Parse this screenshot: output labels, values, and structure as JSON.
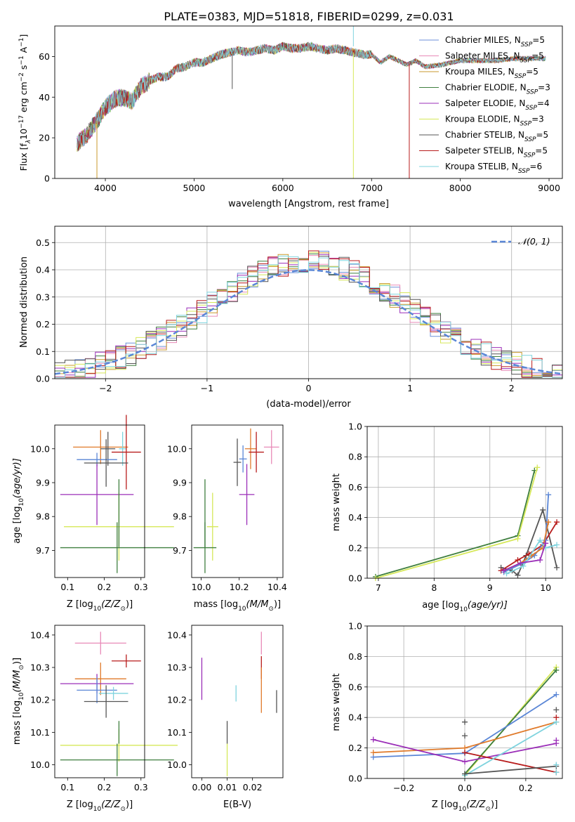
{
  "title": "PLATE=0383, MJD=51818, FIBERID=0299, z=0.031",
  "colors": {
    "Chabrier MILES": "#6b8fd8",
    "Salpeter MILES": "#e88ab8",
    "Kroupa MILES": "#c99a2c",
    "Chabrier ELODIE": "#3f7f3f",
    "Salpeter ELODIE": "#9b2fb8",
    "Kroupa ELODIE": "#d6e85a",
    "Chabrier STELIB": "#555555",
    "Salpeter STELIB": "#b81c1c",
    "Kroupa STELIB": "#7fd3de",
    "orange_extra": "#e07a2a",
    "blue_extra": "#5a86d6",
    "normal": "#5a86d6"
  },
  "chart_data": [
    {
      "type": "line",
      "id": "spectrum",
      "xlabel": "wavelength [Angstrom, rest frame]",
      "ylabel": "Flux [f",
      "ylabel_sub": "λ",
      "ylabel_mid": "10",
      "ylabel_exp": "−17",
      "ylabel_end": " erg cm",
      "ylabel_exp2": "−2",
      "ylabel_end2": " s",
      "ylabel_exp3": "−1",
      "ylabel_end3": " A",
      "ylabel_exp4": "−1",
      "ylabel_close": "]",
      "xlim": [
        3430,
        9150
      ],
      "ylim": [
        0,
        75
      ],
      "xticks": [
        "4000",
        "5000",
        "6000",
        "7000",
        "8000",
        "9000"
      ],
      "yticks": [
        "0",
        "20",
        "40",
        "60"
      ],
      "xtick_values": [
        4000,
        5000,
        6000,
        7000,
        8000,
        9000
      ],
      "ytick_values": [
        0,
        20,
        40,
        60
      ],
      "legend": [
        {
          "label": "Chabrier MILES, N",
          "sub": "SSP",
          "tail": "=5",
          "color": "#6b8fd8"
        },
        {
          "label": "Salpeter MILES, N",
          "sub": "SSP",
          "tail": "=5",
          "color": "#e88ab8"
        },
        {
          "label": "Kroupa MILES, N",
          "sub": "SSP",
          "tail": "=5",
          "color": "#c99a2c"
        },
        {
          "label": "Chabrier ELODIE, N",
          "sub": "SSP",
          "tail": "=3",
          "color": "#3f7f3f"
        },
        {
          "label": "Salpeter ELODIE, N",
          "sub": "SSP",
          "tail": "=4",
          "color": "#9b2fb8"
        },
        {
          "label": "Kroupa ELODIE, N",
          "sub": "SSP",
          "tail": "=3",
          "color": "#d6e85a"
        },
        {
          "label": "Chabrier STELIB, N",
          "sub": "SSP",
          "tail": "=5",
          "color": "#555555"
        },
        {
          "label": "Salpeter STELIB, N",
          "sub": "SSP",
          "tail": "=5",
          "color": "#b81c1c"
        },
        {
          "label": "Kroupa STELIB, N",
          "sub": "SSP",
          "tail": "=6",
          "color": "#7fd3de"
        }
      ],
      "envelope": {
        "x": [
          3680,
          3800,
          3900,
          4000,
          4100,
          4200,
          4300,
          4400,
          4500,
          4600,
          4700,
          4800,
          4900,
          5000,
          5100,
          5200,
          5300,
          5400,
          5500,
          5600,
          5700,
          5800,
          5900,
          6000,
          6100,
          6200,
          6300,
          6400,
          6500,
          6600,
          6700,
          6800,
          6900,
          7000,
          7100,
          7200,
          7300,
          7400,
          7500,
          7600,
          7800,
          8000,
          8200,
          8400,
          8600,
          8800,
          8960
        ],
        "y": [
          17,
          22,
          28,
          35,
          39,
          40,
          38,
          45,
          48,
          50,
          50,
          54,
          55,
          57,
          57,
          59,
          61,
          62,
          63,
          62,
          63,
          64,
          63,
          65,
          64,
          64,
          65,
          64,
          63,
          64,
          63,
          62,
          61,
          61,
          57,
          60,
          58,
          56,
          58,
          55,
          56,
          58,
          58,
          58,
          59,
          59,
          59
        ]
      },
      "drops": [
        {
          "x": 3905,
          "y": 0,
          "series": "Kroupa MILES"
        },
        {
          "x": 6795,
          "y": 0,
          "series": "Kroupa ELODIE"
        },
        {
          "x": 7425,
          "y": 0,
          "series": "Salpeter STELIB"
        },
        {
          "x": 5430,
          "y": 44,
          "series": "Chabrier STELIB"
        }
      ]
    },
    {
      "type": "area",
      "id": "residuals",
      "xlabel": "(data-model)/error",
      "ylabel": "Normed distribution",
      "xlim": [
        -2.5,
        2.5
      ],
      "ylim": [
        0,
        0.56
      ],
      "xticks": [
        "−2",
        "−1",
        "0",
        "1",
        "2"
      ],
      "yticks": [
        "0.0",
        "0.1",
        "0.2",
        "0.3",
        "0.4",
        "0.5"
      ],
      "xtick_values": [
        -2,
        -1,
        0,
        1,
        2
      ],
      "ytick_values": [
        0,
        0.1,
        0.2,
        0.3,
        0.4,
        0.5
      ],
      "legend_label": "𝒩(0, 1)",
      "grid": true,
      "bin_width": 0.1,
      "approx_peak": 0.45
    },
    {
      "type": "scatter",
      "id": "z-age",
      "xlabel": "Z [log",
      "xlabel_sub": "10",
      "xlabel_end": "(Z/Z",
      "xlabel_sun": "⊙",
      "xlabel_close": ")]",
      "ylabel": "age  [log",
      "ylabel_sub": "10",
      "ylabel_end": "(age/yr)]",
      "xlim": [
        0.065,
        0.31
      ],
      "ylim": [
        9.62,
        10.07
      ],
      "xticks": [
        "0.1",
        "0.2",
        "0.3"
      ],
      "yticks": [
        "9.7",
        "9.8",
        "9.9",
        "10.0"
      ],
      "xtick_values": [
        0.1,
        0.2,
        0.3
      ],
      "ytick_values": [
        9.7,
        9.8,
        9.9,
        10.0
      ],
      "points": [
        {
          "x": 0.19,
          "y": 10.005,
          "xerr": 0.075,
          "yerr": 0.05,
          "color": "#e07a2a"
        },
        {
          "x": 0.21,
          "y": 10.0,
          "xerr": 0.02,
          "yerr": 0.05,
          "color": "#555555"
        },
        {
          "x": 0.25,
          "y": 10.0,
          "xerr": 0.01,
          "yerr": 0.05,
          "color": "#7fd3de"
        },
        {
          "x": 0.18,
          "y": 9.968,
          "xerr": 0.055,
          "yerr": 0.02,
          "color": "#5a86d6"
        },
        {
          "x": 0.26,
          "y": 9.99,
          "xerr": 0.04,
          "yerr": 0.11,
          "color": "#b81c1c"
        },
        {
          "x": 0.205,
          "y": 9.958,
          "xerr": 0.06,
          "yerr": 0.07,
          "color": "#555555"
        },
        {
          "x": 0.18,
          "y": 9.865,
          "xerr": 0.1,
          "yerr": 0.09,
          "color": "#9b2fb8"
        },
        {
          "x": 0.24,
          "y": 9.77,
          "xerr": 0.15,
          "yerr": 0.1,
          "color": "#d6e85a"
        },
        {
          "x": 0.235,
          "y": 9.708,
          "xerr": 0.155,
          "yerr": 0.075,
          "color": "#3f7f3f"
        },
        {
          "x": 0.24,
          "y": 9.81,
          "xerr": 0.0,
          "yerr": 0.1,
          "color": "#3f7f3f"
        }
      ]
    },
    {
      "type": "scatter",
      "id": "mass-age",
      "xlabel": "mass [log",
      "xlabel_sub": "10",
      "xlabel_end": "(M/M",
      "xlabel_sun": "⊙",
      "xlabel_close": ")]",
      "xlim": [
        9.95,
        10.43
      ],
      "ylim": [
        9.62,
        10.07
      ],
      "xticks": [
        "10.0",
        "10.2",
        "10.4"
      ],
      "yticks": [
        "9.7",
        "9.8",
        "9.9",
        "10.0"
      ],
      "xtick_values": [
        10.0,
        10.2,
        10.4
      ],
      "ytick_values": [
        9.7,
        9.8,
        9.9,
        10.0
      ],
      "points": [
        {
          "x": 10.37,
          "y": 10.005,
          "xerr": 0.04,
          "yerr": 0.05,
          "color": "#e88ab8"
        },
        {
          "x": 10.26,
          "y": 10.0,
          "xerr": 0.03,
          "yerr": 0.06,
          "color": "#e07a2a"
        },
        {
          "x": 10.22,
          "y": 9.97,
          "xerr": 0.02,
          "yerr": 0.04,
          "color": "#5a86d6"
        },
        {
          "x": 10.29,
          "y": 9.99,
          "xerr": 0.04,
          "yerr": 0.06,
          "color": "#b81c1c"
        },
        {
          "x": 10.19,
          "y": 9.96,
          "xerr": 0.02,
          "yerr": 0.07,
          "color": "#555555"
        },
        {
          "x": 10.24,
          "y": 9.865,
          "xerr": 0.04,
          "yerr": 0.09,
          "color": "#9b2fb8"
        },
        {
          "x": 10.06,
          "y": 9.77,
          "xerr": 0.03,
          "yerr": 0.1,
          "color": "#d6e85a"
        },
        {
          "x": 10.02,
          "y": 9.708,
          "xerr": 0.06,
          "yerr": 0.075,
          "color": "#3f7f3f"
        },
        {
          "x": 10.02,
          "y": 9.81,
          "xerr": 0.0,
          "yerr": 0.1,
          "color": "#3f7f3f"
        }
      ]
    },
    {
      "type": "line",
      "id": "age-massweight",
      "xlabel": "age  [log",
      "xlabel_sub": "10",
      "xlabel_end": "(age/yr)]",
      "ylabel": "mass weight",
      "xlim": [
        6.8,
        10.3
      ],
      "ylim": [
        0,
        1
      ],
      "xticks": [
        "7",
        "8",
        "9",
        "10"
      ],
      "yticks": [
        "0.0",
        "0.2",
        "0.4",
        "0.6",
        "0.8",
        "1.0"
      ],
      "xtick_values": [
        7,
        8,
        9,
        10
      ],
      "ytick_values": [
        0,
        0.2,
        0.4,
        0.6,
        0.8,
        1.0
      ],
      "grid": true,
      "series": [
        {
          "color": "#3f7f3f",
          "x": [
            6.95,
            9.5,
            9.8
          ],
          "y": [
            0.01,
            0.28,
            0.71
          ]
        },
        {
          "color": "#d6e85a",
          "x": [
            6.95,
            9.5,
            9.85
          ],
          "y": [
            0.0,
            0.26,
            0.73
          ]
        },
        {
          "color": "#555555",
          "x": [
            9.2,
            9.4,
            9.5,
            9.65,
            9.95,
            10.2
          ],
          "y": [
            0.07,
            0.05,
            0.02,
            0.15,
            0.45,
            0.07
          ]
        },
        {
          "color": "#b81c1c",
          "x": [
            9.2,
            9.5,
            9.7,
            9.95,
            10.2
          ],
          "y": [
            0.05,
            0.12,
            0.16,
            0.22,
            0.37
          ]
        },
        {
          "color": "#5a86d6",
          "x": [
            9.25,
            9.6,
            9.8,
            10.0,
            10.05
          ],
          "y": [
            0.04,
            0.1,
            0.15,
            0.25,
            0.55
          ]
        },
        {
          "color": "#e07a2a",
          "x": [
            9.25,
            9.55,
            9.75,
            9.95,
            10.05
          ],
          "y": [
            0.05,
            0.1,
            0.15,
            0.2,
            0.37
          ]
        },
        {
          "color": "#7fd3de",
          "x": [
            9.3,
            9.6,
            9.9,
            10.0,
            10.2
          ],
          "y": [
            0.03,
            0.08,
            0.25,
            0.2,
            0.22
          ]
        },
        {
          "color": "#9b2fb8",
          "x": [
            9.25,
            9.55,
            9.9,
            10.0
          ],
          "y": [
            0.05,
            0.1,
            0.12,
            0.23
          ]
        }
      ]
    },
    {
      "type": "scatter",
      "id": "z-mass",
      "xlabel": "Z [log",
      "xlabel_sub": "10",
      "xlabel_end": "(Z/Z",
      "xlabel_sun": "⊙",
      "xlabel_close": ")]",
      "ylabel": "mass [log",
      "ylabel_sub": "10",
      "ylabel_end": "(M/M",
      "ylabel_sun": "⊙",
      "ylabel_close": ")]",
      "xlim": [
        0.065,
        0.31
      ],
      "ylim": [
        9.96,
        10.43
      ],
      "xticks": [
        "0.1",
        "0.2",
        "0.3"
      ],
      "yticks": [
        "10.0",
        "10.1",
        "10.2",
        "10.3",
        "10.4"
      ],
      "xtick_values": [
        0.1,
        0.2,
        0.3
      ],
      "ytick_values": [
        10.0,
        10.1,
        10.2,
        10.3,
        10.4
      ],
      "points": [
        {
          "x": 0.19,
          "y": 10.375,
          "xerr": 0.07,
          "yerr": 0.035,
          "color": "#e88ab8"
        },
        {
          "x": 0.26,
          "y": 10.32,
          "xerr": 0.04,
          "yerr": 0.02,
          "color": "#b81c1c"
        },
        {
          "x": 0.19,
          "y": 10.265,
          "xerr": 0.07,
          "yerr": 0.05,
          "color": "#e07a2a"
        },
        {
          "x": 0.18,
          "y": 10.25,
          "xerr": 0.1,
          "yerr": 0.03,
          "color": "#9b2fb8"
        },
        {
          "x": 0.18,
          "y": 10.23,
          "xerr": 0.055,
          "yerr": 0.04,
          "color": "#5a86d6"
        },
        {
          "x": 0.225,
          "y": 10.22,
          "xerr": 0.04,
          "yerr": 0.02,
          "color": "#7fd3de"
        },
        {
          "x": 0.205,
          "y": 10.195,
          "xerr": 0.06,
          "yerr": 0.05,
          "color": "#555555"
        },
        {
          "x": 0.24,
          "y": 10.06,
          "xerr": 0.16,
          "yerr": 0.05,
          "color": "#d6e85a"
        },
        {
          "x": 0.235,
          "y": 10.015,
          "xerr": 0.155,
          "yerr": 0.05,
          "color": "#3f7f3f"
        },
        {
          "x": 0.24,
          "y": 10.1,
          "xerr": 0.0,
          "yerr": 0.035,
          "color": "#3f7f3f"
        }
      ]
    },
    {
      "type": "scatter",
      "id": "ebv-mass",
      "xlabel": "E(B-V)",
      "xlim": [
        -0.004,
        0.032
      ],
      "ylim": [
        9.96,
        10.43
      ],
      "xticks": [
        "0.00",
        "0.01",
        "0.02"
      ],
      "yticks": [
        "10.0",
        "10.1",
        "10.2",
        "10.3",
        "10.4"
      ],
      "xtick_values": [
        0.0,
        0.01,
        0.02
      ],
      "ytick_values": [
        10.0,
        10.1,
        10.2,
        10.3,
        10.4
      ],
      "points": [
        {
          "x": 0.0,
          "y": 10.265,
          "yerr": 0.065,
          "color": "#9b2fb8"
        },
        {
          "x": 0.0135,
          "y": 10.22,
          "yerr": 0.025,
          "color": "#7fd3de"
        },
        {
          "x": 0.0235,
          "y": 10.375,
          "yerr": 0.035,
          "color": "#e88ab8"
        },
        {
          "x": 0.0235,
          "y": 10.3,
          "yerr": 0.035,
          "color": "#b81c1c"
        },
        {
          "x": 0.0235,
          "y": 10.23,
          "yerr": 0.07,
          "color": "#e07a2a"
        },
        {
          "x": 0.0295,
          "y": 10.195,
          "yerr": 0.035,
          "color": "#555555"
        },
        {
          "x": 0.01,
          "y": 10.1,
          "yerr": 0.035,
          "color": "#555555"
        },
        {
          "x": 0.01,
          "y": 10.015,
          "yerr": 0.05,
          "color": "#d6e85a"
        }
      ]
    },
    {
      "type": "line",
      "id": "z-massweight",
      "xlabel": "Z [log",
      "xlabel_sub": "10",
      "xlabel_end": "(Z/Z",
      "xlabel_sun": "⊙",
      "xlabel_close": ")]",
      "ylabel": "mass weight",
      "xlim": [
        -0.32,
        0.32
      ],
      "ylim": [
        0,
        1
      ],
      "xticks": [
        "−0.2",
        "0.0",
        "0.2"
      ],
      "yticks": [
        "0.0",
        "0.2",
        "0.4",
        "0.6",
        "0.8",
        "1.0"
      ],
      "xtick_values": [
        -0.2,
        0.0,
        0.2
      ],
      "ytick_values": [
        0,
        0.2,
        0.4,
        0.6,
        0.8,
        1.0
      ],
      "grid": true,
      "series": [
        {
          "color": "#d6e85a",
          "x": [
            0.0,
            0.3
          ],
          "y": [
            0.02,
            0.73
          ]
        },
        {
          "color": "#3f7f3f",
          "x": [
            0.0,
            0.3
          ],
          "y": [
            0.03,
            0.71
          ]
        },
        {
          "color": "#5a86d6",
          "x": [
            -0.3,
            0.0,
            0.3
          ],
          "y": [
            0.14,
            0.165,
            0.55
          ]
        },
        {
          "color": "#e07a2a",
          "x": [
            -0.3,
            0.0,
            0.3
          ],
          "y": [
            0.17,
            0.2,
            0.37
          ]
        },
        {
          "color": "#9b2fb8",
          "x": [
            -0.3,
            0.0,
            0.3
          ],
          "y": [
            0.255,
            0.11,
            0.23
          ]
        },
        {
          "color": "#b81c1c",
          "x": [
            0.0,
            0.3
          ],
          "y": [
            0.17,
            0.04
          ]
        },
        {
          "color": "#7fd3de",
          "x": [
            0.0,
            0.3
          ],
          "y": [
            0.02,
            0.37
          ]
        },
        {
          "color": "#555555",
          "x": [
            0.0,
            0.3
          ],
          "y": [
            0.03,
            0.08
          ]
        }
      ],
      "markers": [
        {
          "x": 0.0,
          "y": 0.37,
          "color": "#555555"
        },
        {
          "x": 0.0,
          "y": 0.28,
          "color": "#555555"
        },
        {
          "x": 0.3,
          "y": 0.45,
          "color": "#555555"
        },
        {
          "x": 0.3,
          "y": 0.4,
          "color": "#b81c1c"
        },
        {
          "x": 0.3,
          "y": 0.25,
          "color": "#9b2fb8"
        },
        {
          "x": 0.3,
          "y": 0.09,
          "color": "#7fd3de"
        },
        {
          "x": 0.3,
          "y": 0.04,
          "color": "#7fd3de"
        }
      ]
    }
  ]
}
